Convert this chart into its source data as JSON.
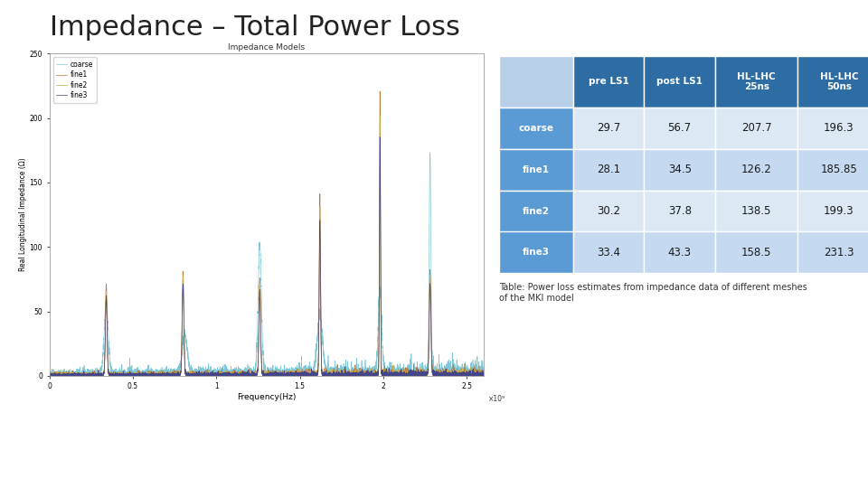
{
  "title": "Impedance – Total Power Loss",
  "title_fontsize": 22,
  "title_color": "#222222",
  "background_color": "#ffffff",
  "plot_title": "Impedance Models",
  "plot_title_fontsize": 6.5,
  "xlabel": "Frequency(Hz)",
  "ylabel": "Real Longitudinal Impedance (Ω)",
  "xlabel_fontsize": 6.5,
  "ylabel_fontsize": 5.5,
  "xlim": [
    0,
    2600000000.0
  ],
  "ylim": [
    0,
    250
  ],
  "yticks": [
    0,
    50,
    100,
    150,
    200,
    250
  ],
  "legend_labels": [
    "coarse",
    "fine1",
    "fine2",
    "fine3"
  ],
  "line_colors": [
    "#7ec8d8",
    "#b87840",
    "#c8a840",
    "#444488"
  ],
  "table_header_bg": "#2e6da4",
  "table_header_text": "#ffffff",
  "table_row_label_bg": "#5b9bd5",
  "table_row_label_text": "#ffffff",
  "table_top_left_bg": "#b8cfe8",
  "table_data_bg_odd": "#dce9f5",
  "table_data_bg_even": "#c5daf0",
  "table_col_headers": [
    "",
    "pre LS1",
    "post LS1",
    "HL-LHC\n25ns",
    "HL-LHC\n50ns"
  ],
  "table_rows": [
    [
      "coarse",
      "29.7",
      "56.7",
      "207.7",
      "196.3"
    ],
    [
      "fine1",
      "28.1",
      "34.5",
      "126.2",
      "185.85"
    ],
    [
      "fine2",
      "30.2",
      "37.8",
      "138.5",
      "199.3"
    ],
    [
      "fine3",
      "33.4",
      "43.3",
      "158.5",
      "231.3"
    ]
  ],
  "table_caption": "Table: Power loss estimates from impedance data of different meshes\nof the MKI model",
  "table_caption_fontsize": 7
}
